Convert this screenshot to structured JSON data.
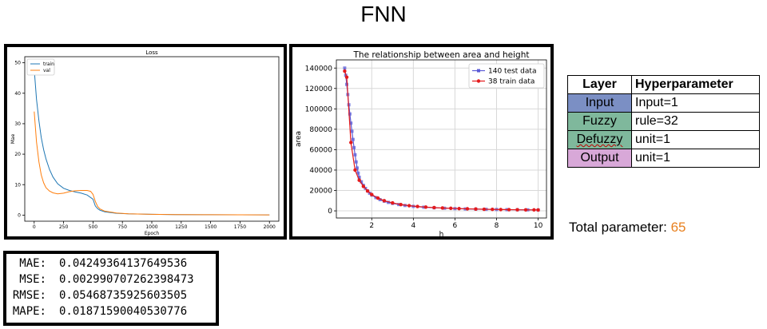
{
  "page_title": "FNN",
  "chart_data": [
    {
      "type": "line",
      "title": "Loss",
      "xlabel": "Epoch",
      "ylabel": "Mae",
      "xlim": [
        -80,
        2080
      ],
      "ylim": [
        -2,
        52
      ],
      "xticks": [
        0,
        250,
        500,
        750,
        1000,
        1250,
        1500,
        1750,
        2000
      ],
      "yticks": [
        0,
        10,
        20,
        30,
        40,
        50
      ],
      "legend_position": "top-left",
      "grid": false,
      "series": [
        {
          "name": "train",
          "color": "#1f77b4",
          "x": [
            0,
            20,
            40,
            60,
            80,
            100,
            130,
            160,
            200,
            250,
            300,
            350,
            400,
            450,
            500,
            520,
            540,
            560,
            600,
            700,
            800,
            1000,
            1200,
            1500,
            1750,
            2000
          ],
          "y": [
            48,
            38,
            31,
            25.5,
            21.5,
            18.5,
            15,
            12.5,
            10.3,
            8.8,
            8.1,
            7.6,
            7.2,
            6.6,
            5.2,
            3.0,
            2.1,
            1.6,
            1.1,
            0.6,
            0.4,
            0.25,
            0.18,
            0.12,
            0.1,
            0.08
          ]
        },
        {
          "name": "val",
          "color": "#ff7f0e",
          "x": [
            0,
            20,
            40,
            60,
            80,
            100,
            130,
            160,
            200,
            250,
            300,
            350,
            400,
            450,
            480,
            500,
            520,
            540,
            560,
            600,
            700,
            800,
            1000,
            1200,
            1500,
            1750,
            2000
          ],
          "y": [
            34,
            24,
            17.5,
            13.2,
            10.6,
            9.0,
            7.9,
            7.3,
            7.0,
            7.2,
            7.7,
            8.0,
            8.1,
            8.1,
            7.8,
            6.8,
            4.5,
            2.8,
            2.0,
            1.3,
            0.7,
            0.45,
            0.25,
            0.18,
            0.12,
            0.1,
            0.08
          ]
        }
      ]
    },
    {
      "type": "line",
      "title": "The relationship between area and height",
      "xlabel": "h",
      "ylabel": "area",
      "xlim": [
        0.3,
        10.4
      ],
      "ylim": [
        -7000,
        148000
      ],
      "xticks": [
        2,
        4,
        6,
        8,
        10
      ],
      "yticks": [
        0,
        20000,
        40000,
        60000,
        80000,
        100000,
        120000,
        140000
      ],
      "legend_position": "top-right",
      "grid": true,
      "series": [
        {
          "name": "140 test data",
          "color": "#5b5bd6",
          "marker": "square",
          "x": [
            0.7,
            0.75,
            0.8,
            0.85,
            0.9,
            0.95,
            1.0,
            1.05,
            1.1,
            1.15,
            1.2,
            1.25,
            1.3,
            1.35,
            1.4,
            1.5,
            1.6,
            1.7,
            1.8,
            1.9,
            2.0,
            2.2,
            2.4,
            2.6,
            2.8,
            3.0,
            3.3,
            3.6,
            4.0,
            4.5,
            5.0,
            5.5,
            6.0,
            6.5,
            7.0,
            7.5,
            8.0,
            8.5,
            9.0,
            9.5,
            10.0
          ],
          "y": [
            140000,
            133000,
            124000,
            114000,
            104000,
            95000,
            86000,
            78000,
            70000,
            62000,
            55000,
            48000,
            42000,
            37000,
            33000,
            28500,
            25000,
            22000,
            19500,
            17300,
            15500,
            13000,
            11000,
            9500,
            8300,
            7300,
            6200,
            5300,
            4400,
            3600,
            3000,
            2600,
            2200,
            1900,
            1700,
            1500,
            1350,
            1200,
            1100,
            1000,
            900
          ]
        },
        {
          "name": "38 train data",
          "color": "#e41a1c",
          "marker": "circle",
          "x": [
            0.7,
            0.8,
            1.0,
            1.2,
            1.4,
            1.6,
            1.8,
            2.0,
            2.3,
            2.6,
            3.0,
            3.4,
            3.8,
            4.2,
            4.6,
            5.0,
            5.4,
            5.8,
            6.2,
            6.6,
            7.0,
            7.4,
            7.8,
            8.2,
            8.6,
            9.0,
            9.4,
            9.8,
            10.0
          ],
          "y": [
            137000,
            131000,
            67000,
            40000,
            30000,
            24000,
            19500,
            16000,
            12500,
            10000,
            7800,
            6200,
            5100,
            4300,
            3700,
            3200,
            2800,
            2500,
            2200,
            2000,
            1800,
            1600,
            1450,
            1300,
            1200,
            1100,
            1000,
            950,
            900
          ]
        }
      ]
    }
  ],
  "hyperparameter_table": {
    "headers": [
      "Layer",
      "Hyperparameter"
    ],
    "rows": [
      {
        "layer": "Input",
        "value": "Input=1",
        "color": "#7b8fc4"
      },
      {
        "layer": "Fuzzy",
        "value": "rule=32",
        "color": "#7fb89c"
      },
      {
        "layer": "Defuzzy",
        "value": "unit=1",
        "color": "#7fb89c"
      },
      {
        "layer": "Output",
        "value": "unit=1",
        "color": "#d8a8d8"
      }
    ]
  },
  "total_parameter": {
    "label": "Total parameter: ",
    "value": "65",
    "value_color": "#e8801f"
  },
  "metrics": [
    {
      "label": "MAE:",
      "value": "0.04249364137649536"
    },
    {
      "label": "MSE:",
      "value": "0.002990707262398473"
    },
    {
      "label": "RMSE:",
      "value": "0.05468735925603505"
    },
    {
      "label": "MAPE:",
      "value": "0.01871590040530776"
    }
  ]
}
